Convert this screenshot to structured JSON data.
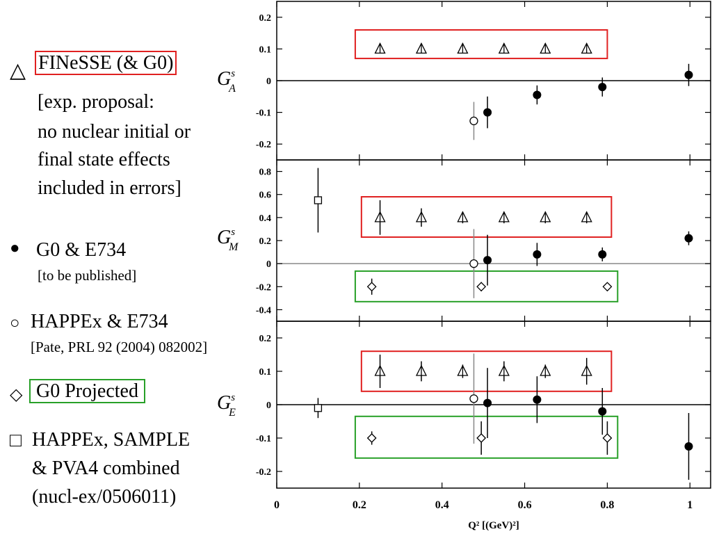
{
  "legend": {
    "finesse": {
      "symbol": "△",
      "title": "FINeSSE (& G0)",
      "note": [
        "[exp. proposal:",
        "no nuclear initial or",
        "final state effects",
        "included in errors]"
      ]
    },
    "g0e734": {
      "symbol": "●",
      "title": "G0 & E734",
      "note": "[to be published]"
    },
    "happex": {
      "symbol": "○",
      "title": "HAPPEx & E734",
      "note": "[Pate, PRL 92 (2004) 082002]"
    },
    "g0proj": {
      "symbol": "◇",
      "title": "G0 Projected"
    },
    "combined": {
      "symbol": "□",
      "lines": [
        "HAPPEx, SAMPLE",
        "& PVA4  combined",
        "(nucl-ex/0506011)"
      ]
    }
  },
  "chart_data": [
    {
      "type": "scatter",
      "panel": "top",
      "ylabel": "G_A^s",
      "ylim": [
        -0.25,
        0.25
      ],
      "yticks": [
        "0.2",
        "0.1",
        "0",
        "-0.1",
        "-0.2"
      ],
      "series": [
        {
          "marker": "triangle",
          "points": [
            [
              0.25,
              0.1,
              0.01
            ],
            [
              0.35,
              0.1,
              0.01
            ],
            [
              0.45,
              0.1,
              0.01
            ],
            [
              0.55,
              0.1,
              0.01
            ],
            [
              0.65,
              0.1,
              0.01
            ],
            [
              0.75,
              0.1,
              0.01
            ]
          ]
        },
        {
          "marker": "filled-circle",
          "points": [
            [
              0.51,
              -0.1,
              0.05
            ],
            [
              0.63,
              -0.045,
              0.03
            ],
            [
              0.788,
              -0.02,
              0.03
            ],
            [
              0.997,
              0.018,
              0.035
            ]
          ]
        },
        {
          "marker": "open-circle",
          "points": [
            [
              0.477,
              -0.127,
              0.06
            ]
          ]
        }
      ],
      "boxes": [
        {
          "color": "red",
          "x": [
            0.19,
            0.8
          ],
          "y": [
            0.07,
            0.16
          ]
        }
      ]
    },
    {
      "type": "scatter",
      "panel": "middle",
      "ylabel": "G_M^s",
      "ylim": [
        -0.5,
        0.9
      ],
      "yticks": [
        "0.8",
        "0.6",
        "0.4",
        "0.2",
        "0",
        "-0.2",
        "-0.4"
      ],
      "series": [
        {
          "marker": "square",
          "points": [
            [
              0.1,
              0.55,
              0.28
            ]
          ]
        },
        {
          "marker": "triangle",
          "points": [
            [
              0.25,
              0.4,
              0.15
            ],
            [
              0.35,
              0.4,
              0.08
            ],
            [
              0.45,
              0.4,
              0.05
            ],
            [
              0.55,
              0.4,
              0.05
            ],
            [
              0.65,
              0.4,
              0.05
            ],
            [
              0.75,
              0.4,
              0.05
            ]
          ]
        },
        {
          "marker": "filled-circle",
          "points": [
            [
              0.51,
              0.03,
              0.22
            ],
            [
              0.63,
              0.08,
              0.1
            ],
            [
              0.788,
              0.08,
              0.06
            ],
            [
              0.997,
              0.22,
              0.06
            ]
          ]
        },
        {
          "marker": "open-circle",
          "points": [
            [
              0.477,
              0.0,
              0.3
            ]
          ]
        },
        {
          "marker": "diamond",
          "points": [
            [
              0.23,
              -0.2,
              0.07
            ],
            [
              0.495,
              -0.2,
              0.04
            ],
            [
              0.8,
              -0.2,
              0.03
            ]
          ]
        }
      ],
      "boxes": [
        {
          "color": "red",
          "x": [
            0.205,
            0.81
          ],
          "y": [
            0.23,
            0.58
          ]
        },
        {
          "color": "green",
          "x": [
            0.19,
            0.825
          ],
          "y": [
            -0.33,
            -0.065
          ]
        }
      ]
    },
    {
      "type": "scatter",
      "panel": "bottom",
      "ylabel": "G_E^s",
      "ylim": [
        -0.25,
        0.25
      ],
      "yticks": [
        "0.2",
        "0.1",
        "0",
        "-0.1",
        "-0.2"
      ],
      "xlabel": "Q² [(GeV)²]",
      "xlim": [
        0,
        1.05
      ],
      "xticks": [
        "0",
        "0.2",
        "0.4",
        "0.6",
        "0.8",
        "1"
      ],
      "series": [
        {
          "marker": "square",
          "points": [
            [
              0.1,
              -0.01,
              0.03
            ]
          ]
        },
        {
          "marker": "triangle",
          "points": [
            [
              0.25,
              0.1,
              0.05
            ],
            [
              0.35,
              0.1,
              0.03
            ],
            [
              0.45,
              0.1,
              0.02
            ],
            [
              0.55,
              0.1,
              0.03
            ],
            [
              0.65,
              0.1,
              0.02
            ],
            [
              0.75,
              0.1,
              0.04
            ]
          ]
        },
        {
          "marker": "filled-circle",
          "points": [
            [
              0.51,
              0.005,
              0.105
            ],
            [
              0.63,
              0.015,
              0.07
            ],
            [
              0.788,
              -0.02,
              0.07
            ],
            [
              0.997,
              -0.125,
              0.1
            ]
          ]
        },
        {
          "marker": "open-circle",
          "points": [
            [
              0.477,
              0.018,
              0.135
            ]
          ]
        },
        {
          "marker": "diamond",
          "points": [
            [
              0.23,
              -0.1,
              0.02
            ],
            [
              0.495,
              -0.1,
              0.05
            ],
            [
              0.8,
              -0.1,
              0.05
            ]
          ]
        }
      ],
      "boxes": [
        {
          "color": "red",
          "x": [
            0.205,
            0.81
          ],
          "y": [
            0.04,
            0.16
          ]
        },
        {
          "color": "green",
          "x": [
            0.19,
            0.825
          ],
          "y": [
            -0.16,
            -0.035
          ]
        }
      ]
    }
  ]
}
